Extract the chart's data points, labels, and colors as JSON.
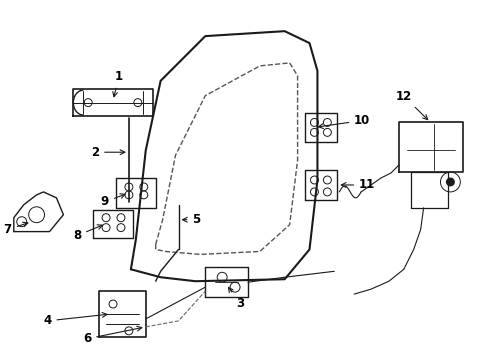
{
  "background_color": "#ffffff",
  "line_color": "#1a1a1a",
  "figsize": [
    4.89,
    3.6
  ],
  "dpi": 100,
  "door_outer_x": [
    1.3,
    1.35,
    1.45,
    1.6,
    2.05,
    2.85,
    3.1,
    3.18,
    3.18,
    3.1,
    2.85,
    1.95,
    1.6,
    1.3
  ],
  "door_outer_y": [
    0.9,
    1.2,
    2.1,
    2.8,
    3.25,
    3.3,
    3.18,
    2.9,
    1.8,
    1.1,
    0.8,
    0.78,
    0.82,
    0.9
  ],
  "inner_x": [
    1.55,
    1.62,
    1.75,
    2.05,
    2.6,
    2.9,
    2.98,
    2.98,
    2.9,
    2.6,
    2.0,
    1.65,
    1.55,
    1.55
  ],
  "inner_y": [
    1.15,
    1.4,
    2.05,
    2.65,
    2.95,
    2.98,
    2.85,
    2.0,
    1.35,
    1.08,
    1.05,
    1.08,
    1.1,
    1.15
  ]
}
